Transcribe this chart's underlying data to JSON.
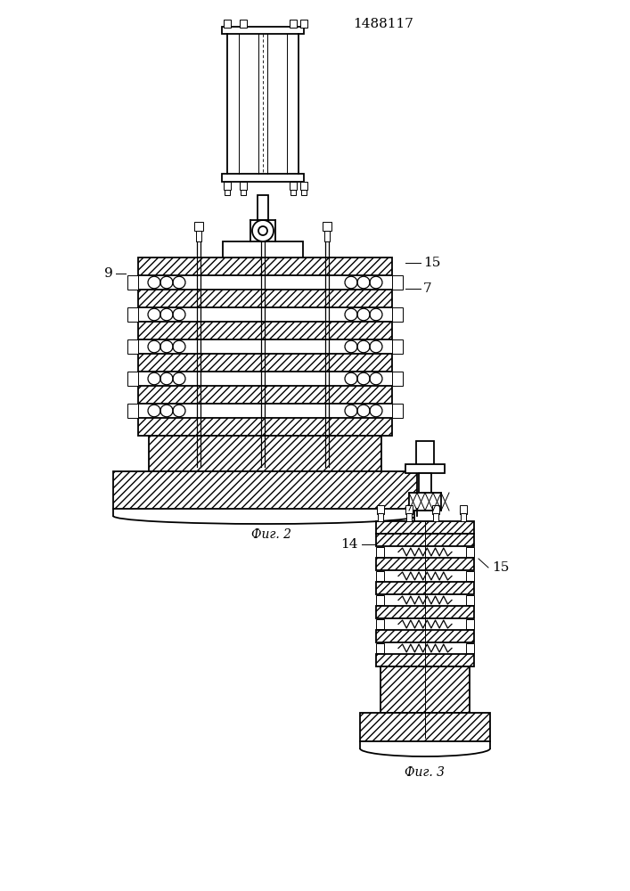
{
  "title": "1488117",
  "fig2_label": "Фиг. 2",
  "fig3_label": "Фиг. 3",
  "label_9": "9",
  "label_7": "7",
  "label_15_fig2": "15",
  "label_14": "14",
  "label_15_fig3": "15",
  "bg_color": "#ffffff",
  "fig_width": 7.07,
  "fig_height": 10.0
}
